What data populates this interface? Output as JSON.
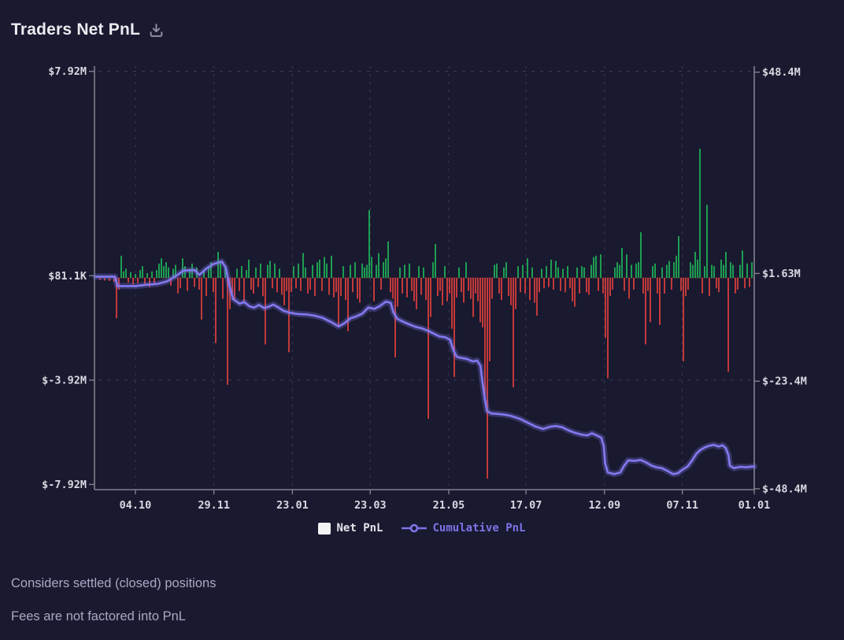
{
  "header": {
    "title": "Traders Net PnL"
  },
  "legend": {
    "net_pnl_label": "Net PnL",
    "cumulative_label": "Cumulative PnL"
  },
  "footnotes": {
    "line1": "Considers settled (closed) positions",
    "line2": "Fees are not factored into PnL"
  },
  "colors": {
    "background": "#191930",
    "bar_green": "#1e9e52",
    "bar_red": "#c23a3a",
    "line_purple": "#837af0",
    "axis": "#80808e",
    "grid": "#3c3c57",
    "tick_label": "#d9d9e2",
    "title": "#ececf1",
    "caption": "#a9a9c6",
    "icon": "#8f8fa3",
    "legend_swatch": "#f4f4f6"
  },
  "chart_data": {
    "type": "bar+line",
    "title": "Traders Net PnL",
    "grid": true,
    "legend_position": "bottom",
    "x_ticks": [
      {
        "f": 0.062,
        "label": "04.10"
      },
      {
        "f": 0.181,
        "label": "29.11"
      },
      {
        "f": 0.3,
        "label": "23.01"
      },
      {
        "f": 0.418,
        "label": "23.03"
      },
      {
        "f": 0.537,
        "label": "21.05"
      },
      {
        "f": 0.654,
        "label": "17.07"
      },
      {
        "f": 0.773,
        "label": "12.09"
      },
      {
        "f": 0.891,
        "label": "07.11"
      },
      {
        "f": 1.0,
        "label": "01.01"
      }
    ],
    "left_axis": {
      "series": "Net PnL",
      "unit": "USD millions",
      "range": [
        -8.12,
        8.12
      ],
      "ticks": [
        {
          "v": 7.92,
          "label": "$7.92M",
          "gridline": true
        },
        {
          "v": 0.0811,
          "label": "$81.1K",
          "gridline": false
        },
        {
          "v": -3.92,
          "label": "$-3.92M",
          "gridline": true
        },
        {
          "v": -7.92,
          "label": "$-7.92M",
          "gridline": false
        }
      ]
    },
    "right_axis": {
      "series": "Cumulative PnL",
      "unit": "USD millions",
      "range": [
        -48.6,
        49.8
      ],
      "ticks": [
        {
          "v": 48.4,
          "label": "$48.4M"
        },
        {
          "v": 1.63,
          "label": "$1.63M"
        },
        {
          "v": -23.4,
          "label": "$-23.4M"
        },
        {
          "v": -48.4,
          "label": "$-48.4M"
        }
      ]
    },
    "bars": {
      "name": "Net PnL",
      "x0_frac": 0.00835,
      "step_frac": 0.00358,
      "values_musd": [
        -0.08,
        0.06,
        -0.1,
        0.08,
        -0.12,
        0.1,
        -0.15,
        -1.55,
        -0.45,
        0.85,
        0.25,
        0.35,
        -0.18,
        0.22,
        -0.25,
        0.15,
        -0.2,
        0.3,
        0.45,
        -0.28,
        0.18,
        -0.35,
        0.25,
        -0.22,
        0.3,
        0.55,
        0.75,
        0.45,
        0.6,
        0.4,
        -0.3,
        0.35,
        0.5,
        -0.6,
        -0.4,
        0.75,
        0.45,
        -0.5,
        0.35,
        0.55,
        -0.35,
        0.4,
        -0.45,
        -1.6,
        0.3,
        -0.7,
        0.45,
        0.6,
        -0.55,
        -2.5,
        1.0,
        0.6,
        -0.8,
        0.4,
        -4.1,
        -1.2,
        -0.6,
        -0.9,
        0.35,
        -0.5,
        0.45,
        -0.95,
        0.3,
        0.7,
        -0.45,
        -0.6,
        0.4,
        -0.35,
        0.55,
        -0.7,
        -2.55,
        0.5,
        0.65,
        -0.4,
        0.55,
        -0.55,
        0.35,
        -0.65,
        -1.05,
        -0.5,
        -2.85,
        -0.55,
        0.45,
        -0.4,
        0.55,
        -0.5,
        0.95,
        0.4,
        -0.6,
        -0.45,
        0.5,
        -0.7,
        0.6,
        0.7,
        -0.5,
        0.8,
        0.55,
        -0.65,
        0.85,
        -0.75,
        -0.55,
        -1.85,
        -0.7,
        0.45,
        -0.85,
        -2.05,
        0.5,
        -0.55,
        0.6,
        -0.8,
        -0.95,
        0.55,
        0.4,
        0.5,
        2.6,
        0.8,
        -0.9,
        0.5,
        0.95,
        -0.45,
        0.6,
        0.75,
        1.4,
        -0.55,
        -0.8,
        -3.05,
        -1.1,
        0.4,
        -0.6,
        0.5,
        -0.75,
        0.55,
        -0.5,
        -0.9,
        -1.2,
        0.45,
        -0.65,
        0.4,
        -0.85,
        -5.4,
        -1.5,
        0.6,
        1.3,
        -0.7,
        -0.5,
        -1.05,
        0.45,
        -0.9,
        -0.6,
        -1.95,
        -3.8,
        -0.75,
        0.4,
        -0.55,
        -0.95,
        0.6,
        -0.5,
        -0.8,
        -1.5,
        -0.6,
        -0.9,
        -1.7,
        -1.9,
        -4.5,
        -7.7,
        -3.2,
        -0.8,
        0.5,
        0.55,
        -0.6,
        -0.85,
        0.4,
        0.6,
        -0.7,
        -1.05,
        -4.2,
        -1.2,
        0.45,
        -0.55,
        0.5,
        -0.6,
        0.75,
        -0.85,
        0.4,
        -0.95,
        -1.45,
        -0.55,
        0.35,
        -0.4,
        0.45,
        -0.35,
        0.7,
        -0.45,
        0.65,
        0.4,
        -0.5,
        0.35,
        -0.55,
        0.45,
        -0.4,
        -0.9,
        -1.1,
        0.4,
        -0.6,
        0.45,
        0.4,
        -0.55,
        -0.65,
        0.5,
        0.8,
        0.85,
        -0.5,
        0.9,
        -0.6,
        -2.3,
        -3.85,
        -0.7,
        -0.45,
        0.4,
        0.6,
        0.5,
        1.15,
        -0.5,
        0.9,
        -0.8,
        0.5,
        -0.45,
        0.55,
        0.6,
        1.75,
        -0.6,
        -2.55,
        -0.5,
        -1.7,
        0.45,
        0.55,
        -0.6,
        -1.8,
        0.4,
        -0.6,
        0.5,
        0.65,
        -0.45,
        0.6,
        0.85,
        1.6,
        -0.5,
        -3.2,
        -0.7,
        -0.45,
        0.6,
        0.5,
        1.0,
        0.7,
        4.95,
        -0.6,
        0.45,
        2.8,
        -0.7,
        0.5,
        0.45,
        -0.4,
        -0.55,
        0.7,
        0.5,
        1.0,
        -3.6,
        0.6,
        0.5,
        -0.6,
        -0.45,
        0.5,
        1.05,
        -0.4,
        0.55,
        -0.35,
        0.6
      ]
    },
    "line": {
      "name": "Cumulative PnL",
      "points": [
        [
          0.002,
          0.9
        ],
        [
          0.031,
          0.9
        ],
        [
          0.035,
          -1.3
        ],
        [
          0.062,
          -1.3
        ],
        [
          0.08,
          -1.0
        ],
        [
          0.095,
          -0.8
        ],
        [
          0.11,
          -0.2
        ],
        [
          0.124,
          1.1
        ],
        [
          0.135,
          2.3
        ],
        [
          0.152,
          2.4
        ],
        [
          0.159,
          1.3
        ],
        [
          0.169,
          2.7
        ],
        [
          0.18,
          3.8
        ],
        [
          0.193,
          4.4
        ],
        [
          0.199,
          3.0
        ],
        [
          0.204,
          -0.9
        ],
        [
          0.21,
          -4.3
        ],
        [
          0.22,
          -5.4
        ],
        [
          0.227,
          -5.0
        ],
        [
          0.235,
          -6.0
        ],
        [
          0.242,
          -6.3
        ],
        [
          0.249,
          -5.7
        ],
        [
          0.257,
          -6.4
        ],
        [
          0.264,
          -6.1
        ],
        [
          0.271,
          -5.6
        ],
        [
          0.278,
          -6.2
        ],
        [
          0.286,
          -7.0
        ],
        [
          0.296,
          -7.5
        ],
        [
          0.308,
          -7.8
        ],
        [
          0.322,
          -7.9
        ],
        [
          0.334,
          -8.2
        ],
        [
          0.346,
          -8.7
        ],
        [
          0.358,
          -9.6
        ],
        [
          0.37,
          -10.7
        ],
        [
          0.378,
          -10.0
        ],
        [
          0.388,
          -8.8
        ],
        [
          0.396,
          -8.4
        ],
        [
          0.406,
          -7.7
        ],
        [
          0.415,
          -6.3
        ],
        [
          0.424,
          -6.6
        ],
        [
          0.432,
          -6.0
        ],
        [
          0.442,
          -4.9
        ],
        [
          0.449,
          -5.2
        ],
        [
          0.453,
          -7.4
        ],
        [
          0.459,
          -8.9
        ],
        [
          0.468,
          -9.6
        ],
        [
          0.477,
          -10.2
        ],
        [
          0.487,
          -10.8
        ],
        [
          0.496,
          -11.1
        ],
        [
          0.506,
          -11.7
        ],
        [
          0.516,
          -12.5
        ],
        [
          0.523,
          -13.0
        ],
        [
          0.532,
          -13.2
        ],
        [
          0.539,
          -13.8
        ],
        [
          0.544,
          -16.2
        ],
        [
          0.549,
          -17.7
        ],
        [
          0.556,
          -18.0
        ],
        [
          0.564,
          -18.2
        ],
        [
          0.573,
          -18.8
        ],
        [
          0.58,
          -18.6
        ],
        [
          0.585,
          -19.8
        ],
        [
          0.588,
          -23.5
        ],
        [
          0.592,
          -27.9
        ],
        [
          0.595,
          -30.3
        ],
        [
          0.601,
          -30.9
        ],
        [
          0.611,
          -31.0
        ],
        [
          0.623,
          -31.2
        ],
        [
          0.632,
          -31.5
        ],
        [
          0.644,
          -32.1
        ],
        [
          0.656,
          -33.0
        ],
        [
          0.668,
          -33.9
        ],
        [
          0.68,
          -34.5
        ],
        [
          0.69,
          -34.0
        ],
        [
          0.699,
          -33.8
        ],
        [
          0.709,
          -34.1
        ],
        [
          0.718,
          -34.8
        ],
        [
          0.728,
          -35.4
        ],
        [
          0.738,
          -35.8
        ],
        [
          0.747,
          -36.0
        ],
        [
          0.754,
          -35.5
        ],
        [
          0.761,
          -36.0
        ],
        [
          0.768,
          -36.5
        ],
        [
          0.772,
          -38.5
        ],
        [
          0.774,
          -42.5
        ],
        [
          0.778,
          -44.6
        ],
        [
          0.788,
          -45.0
        ],
        [
          0.797,
          -44.6
        ],
        [
          0.803,
          -43.0
        ],
        [
          0.809,
          -41.8
        ],
        [
          0.819,
          -41.9
        ],
        [
          0.828,
          -41.7
        ],
        [
          0.835,
          -42.2
        ],
        [
          0.844,
          -43.0
        ],
        [
          0.852,
          -43.4
        ],
        [
          0.86,
          -43.6
        ],
        [
          0.869,
          -44.3
        ],
        [
          0.877,
          -45.0
        ],
        [
          0.884,
          -44.8
        ],
        [
          0.891,
          -44.0
        ],
        [
          0.899,
          -43.2
        ],
        [
          0.906,
          -41.8
        ],
        [
          0.912,
          -40.3
        ],
        [
          0.918,
          -39.4
        ],
        [
          0.925,
          -38.8
        ],
        [
          0.932,
          -38.4
        ],
        [
          0.939,
          -38.2
        ],
        [
          0.946,
          -38.6
        ],
        [
          0.952,
          -38.3
        ],
        [
          0.957,
          -39.0
        ],
        [
          0.961,
          -40.6
        ],
        [
          0.963,
          -43.0
        ],
        [
          0.969,
          -43.6
        ],
        [
          0.979,
          -43.3
        ],
        [
          0.988,
          -43.4
        ],
        [
          1.0,
          -43.2
        ]
      ]
    }
  }
}
